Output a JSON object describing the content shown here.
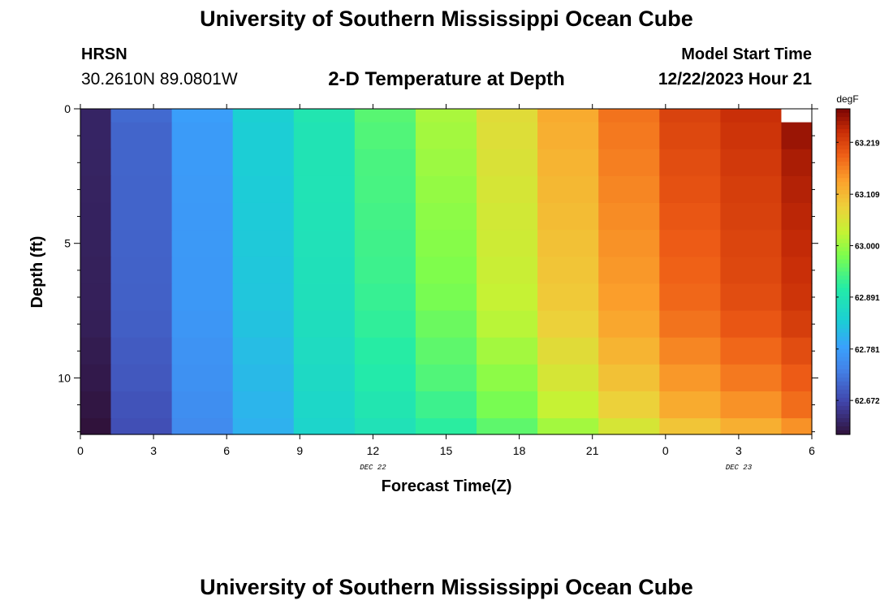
{
  "header": {
    "title": "University of Southern Mississippi Ocean Cube",
    "station": "HRSN",
    "coords": "30.2610N  89.0801W",
    "subtitle": "2-D Temperature at Depth",
    "start_label": "Model Start Time",
    "start_value": "12/22/2023 Hour 21"
  },
  "footer": {
    "title": "University of Southern Mississippi Ocean Cube"
  },
  "chart_data": {
    "type": "heatmap",
    "title": "2-D Temperature at Depth",
    "xlabel": "Forecast Time(Z)",
    "ylabel": "Depth (ft)",
    "x_ticks": [
      {
        "hour": 0,
        "label": "0"
      },
      {
        "hour": 3,
        "label": "3"
      },
      {
        "hour": 6,
        "label": "6"
      },
      {
        "hour": 9,
        "label": "9"
      },
      {
        "hour": 12,
        "label": "12"
      },
      {
        "hour": 15,
        "label": "15"
      },
      {
        "hour": 18,
        "label": "18"
      },
      {
        "hour": 21,
        "label": "21"
      },
      {
        "hour": 24,
        "label": "0"
      },
      {
        "hour": 27,
        "label": "3"
      },
      {
        "hour": 30,
        "label": "6"
      }
    ],
    "date_labels": [
      {
        "hour": 12,
        "label": "DEC 22"
      },
      {
        "hour": 27,
        "label": "DEC 23"
      }
    ],
    "xlim": [
      0,
      30
    ],
    "y_ticks": [
      {
        "depth": 0,
        "label": "0"
      },
      {
        "depth": 5,
        "label": "5"
      },
      {
        "depth": 10,
        "label": "10"
      }
    ],
    "ylim": [
      0,
      12.1
    ],
    "colorbar": {
      "unit": "degF",
      "range": [
        62.6,
        63.29
      ],
      "tick_labels": [
        "62.672",
        "62.781",
        "62.891",
        "63.000",
        "63.109",
        "63.219"
      ],
      "tick_values": [
        62.672,
        62.781,
        62.891,
        63.0,
        63.109,
        63.219
      ]
    },
    "time_edges": [
      0,
      1.25,
      3.75,
      6.25,
      8.75,
      11.25,
      13.75,
      16.25,
      18.75,
      21.25,
      23.75,
      26.25,
      28.75,
      30
    ],
    "depth_edges": [
      0,
      0.5,
      1.5,
      2.5,
      3.5,
      4.5,
      5.5,
      6.5,
      7.5,
      8.5,
      9.5,
      10.5,
      11.5,
      12.1
    ],
    "values": [
      [
        62.625,
        62.71,
        62.78,
        62.845,
        62.895,
        62.95,
        63.01,
        63.065,
        63.125,
        63.175,
        63.22,
        63.24,
        null
      ],
      [
        62.625,
        62.705,
        62.775,
        62.84,
        62.89,
        62.945,
        63.005,
        63.06,
        63.12,
        63.17,
        63.215,
        63.235,
        63.27
      ],
      [
        62.624,
        62.705,
        62.775,
        62.84,
        62.89,
        62.94,
        63.0,
        63.055,
        63.115,
        63.165,
        63.21,
        63.23,
        63.26
      ],
      [
        62.623,
        62.704,
        62.774,
        62.838,
        62.888,
        62.938,
        62.995,
        63.05,
        63.11,
        63.16,
        63.205,
        63.225,
        63.255
      ],
      [
        62.622,
        62.703,
        62.773,
        62.836,
        62.886,
        62.935,
        62.99,
        63.045,
        63.105,
        63.155,
        63.2,
        63.222,
        63.25
      ],
      [
        62.621,
        62.702,
        62.772,
        62.834,
        62.884,
        62.932,
        62.985,
        63.04,
        63.1,
        63.15,
        63.195,
        63.218,
        63.245
      ],
      [
        62.62,
        62.701,
        62.771,
        62.832,
        62.882,
        62.93,
        62.98,
        63.035,
        63.095,
        63.145,
        63.19,
        63.215,
        63.24
      ],
      [
        62.619,
        62.7,
        62.77,
        62.83,
        62.88,
        62.925,
        62.975,
        63.03,
        63.09,
        63.14,
        63.185,
        63.21,
        63.235
      ],
      [
        62.617,
        62.698,
        62.768,
        62.826,
        62.876,
        62.92,
        62.965,
        63.02,
        63.08,
        63.13,
        63.175,
        63.2,
        63.225
      ],
      [
        62.613,
        62.693,
        62.763,
        62.82,
        62.87,
        62.912,
        62.955,
        63.005,
        63.065,
        63.115,
        63.16,
        63.185,
        63.21
      ],
      [
        62.61,
        62.69,
        62.76,
        62.815,
        62.865,
        62.905,
        62.945,
        62.99,
        63.05,
        63.1,
        63.145,
        63.17,
        63.195
      ],
      [
        62.605,
        62.685,
        62.755,
        62.81,
        62.86,
        62.895,
        62.93,
        62.975,
        63.03,
        63.08,
        63.125,
        63.15,
        63.18
      ],
      [
        62.6,
        62.68,
        62.75,
        62.805,
        62.855,
        62.885,
        62.915,
        62.955,
        63.005,
        63.05,
        63.095,
        63.12,
        63.15
      ]
    ]
  }
}
